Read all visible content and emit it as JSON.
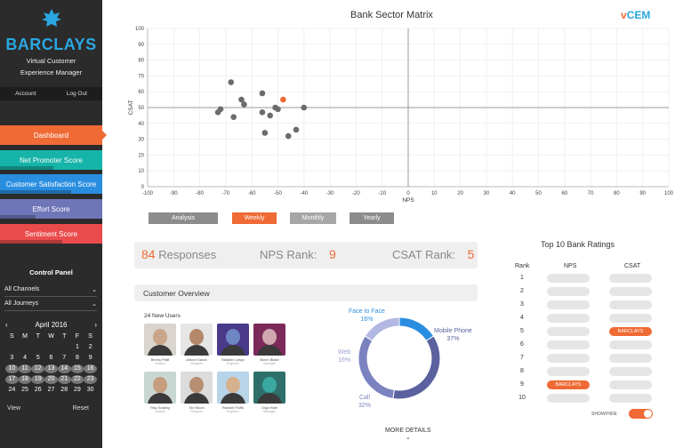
{
  "sidebar": {
    "logo_text": "BARCLAYS",
    "app_name_line1": "Virtual Customer",
    "app_name_line2": "Experience Manager",
    "account_label": "Account",
    "logout_label": "Log Out",
    "nav": [
      {
        "label": "Dashboard",
        "color": "#ef6a34"
      },
      {
        "label": "Net Promoter Score",
        "color": "#16b3a8"
      },
      {
        "label": "Customer Satisfaction Score",
        "color": "#2a8ee0"
      },
      {
        "label": "Effort Score",
        "color": "#6f76b8"
      },
      {
        "label": "Sentiment Score",
        "color": "#ea4c4c"
      }
    ],
    "control_panel_title": "Control Panel",
    "channels_select": "All Channels",
    "journeys_select": "All Journeys",
    "calendar": {
      "month": "April 2016",
      "weekdays": [
        "S",
        "M",
        "T",
        "W",
        "T",
        "F",
        "S"
      ],
      "days": [
        "",
        "",
        "",
        "",
        "",
        "1",
        "2",
        "3",
        "4",
        "5",
        "6",
        "7",
        "8",
        "9",
        "10",
        "11",
        "12",
        "13",
        "14",
        "15",
        "16",
        "17",
        "18",
        "19",
        "20",
        "21",
        "22",
        "23",
        "24",
        "25",
        "26",
        "27",
        "28",
        "29",
        "30"
      ],
      "selected_days": [
        "10",
        "11",
        "12",
        "13",
        "14",
        "15",
        "16",
        "17",
        "18",
        "19",
        "20",
        "21",
        "22",
        "23"
      ]
    },
    "view_label": "View",
    "reset_label": "Reset"
  },
  "header": {
    "title": "Bank Sector Matrix",
    "brand_v": "v",
    "brand_rest": "CEM"
  },
  "chart_data": {
    "type": "scatter",
    "title": "Bank Sector Matrix",
    "xlabel": "NPS",
    "ylabel": "CSAT",
    "xlim": [
      -100,
      100
    ],
    "ylim": [
      0,
      100
    ],
    "xticks": [
      "-100",
      "-90",
      "-80",
      "-70",
      "-60",
      "-50",
      "-40",
      "-30",
      "-20",
      "-10",
      "0",
      "10",
      "20",
      "30",
      "40",
      "50",
      "60",
      "70",
      "80",
      "90",
      "100"
    ],
    "yticks": [
      "0",
      "10",
      "20",
      "30",
      "40",
      "50",
      "60",
      "70",
      "80",
      "90",
      "100"
    ],
    "grid": true,
    "points": [
      {
        "x": -68,
        "y": 66
      },
      {
        "x": -64,
        "y": 55
      },
      {
        "x": -63,
        "y": 52
      },
      {
        "x": -72,
        "y": 49
      },
      {
        "x": -73,
        "y": 47
      },
      {
        "x": -67,
        "y": 44
      },
      {
        "x": -56,
        "y": 59
      },
      {
        "x": -56,
        "y": 47
      },
      {
        "x": -51,
        "y": 50
      },
      {
        "x": -53,
        "y": 45
      },
      {
        "x": -50,
        "y": 49
      },
      {
        "x": -48,
        "y": 55,
        "highlight": true
      },
      {
        "x": -55,
        "y": 34
      },
      {
        "x": -43,
        "y": 36
      },
      {
        "x": -46,
        "y": 32
      },
      {
        "x": -40,
        "y": 50
      }
    ],
    "point_color": "#6b6b6b",
    "highlight_color": "#ef6a34"
  },
  "toggles": {
    "analysis": "Analysis",
    "weekly": "Weekly",
    "monthly": "Monthly",
    "yearly": "Yearly"
  },
  "stats": {
    "responses_value": "84",
    "responses_label": "Responses",
    "nps_rank_label": "NPS Rank:",
    "nps_rank_value": "9",
    "csat_rank_label": "CSAT Rank:",
    "csat_rank_value": "5"
  },
  "customer_overview": {
    "title": "Customer Overview",
    "new_users_label": "24 New Users",
    "users": [
      {
        "name": "Benny Platt",
        "role": "Analyst"
      },
      {
        "name": "Antoni Garza",
        "role": "Designer"
      },
      {
        "name": "Maddie Longo",
        "role": "Engineer"
      },
      {
        "name": "Burch Blake",
        "role": "Manager"
      },
      {
        "name": "Ray Scaling",
        "role": "Analyst"
      },
      {
        "name": "Ted Moon",
        "role": "Designer"
      },
      {
        "name": "Raskell Fluffs",
        "role": "Engineer"
      },
      {
        "name": "Olga Hale",
        "role": "Manager"
      }
    ],
    "channels": [
      {
        "name": "Face to Face",
        "pct": 16,
        "color": "#2a8ee0"
      },
      {
        "name": "Mobile Phone",
        "pct": 37,
        "color": "#5a619e"
      },
      {
        "name": "Call",
        "pct": 32,
        "color": "#7b82c0"
      },
      {
        "name": "Web",
        "pct": 16,
        "color": "#b2b8e2"
      }
    ],
    "more_details": "MORE DETAILS"
  },
  "top10": {
    "title": "Top 10 Bank Ratings",
    "rank_header": "Rank",
    "nps_header": "NPS",
    "csat_header": "CSAT",
    "ranks": [
      "1",
      "2",
      "3",
      "4",
      "5",
      "6",
      "7",
      "8",
      "9",
      "10"
    ],
    "nps_highlight_rank": 9,
    "csat_highlight_rank": 5,
    "highlight_label": "BARCLAYS",
    "show_hide_label": "SHOW/HIDE"
  }
}
